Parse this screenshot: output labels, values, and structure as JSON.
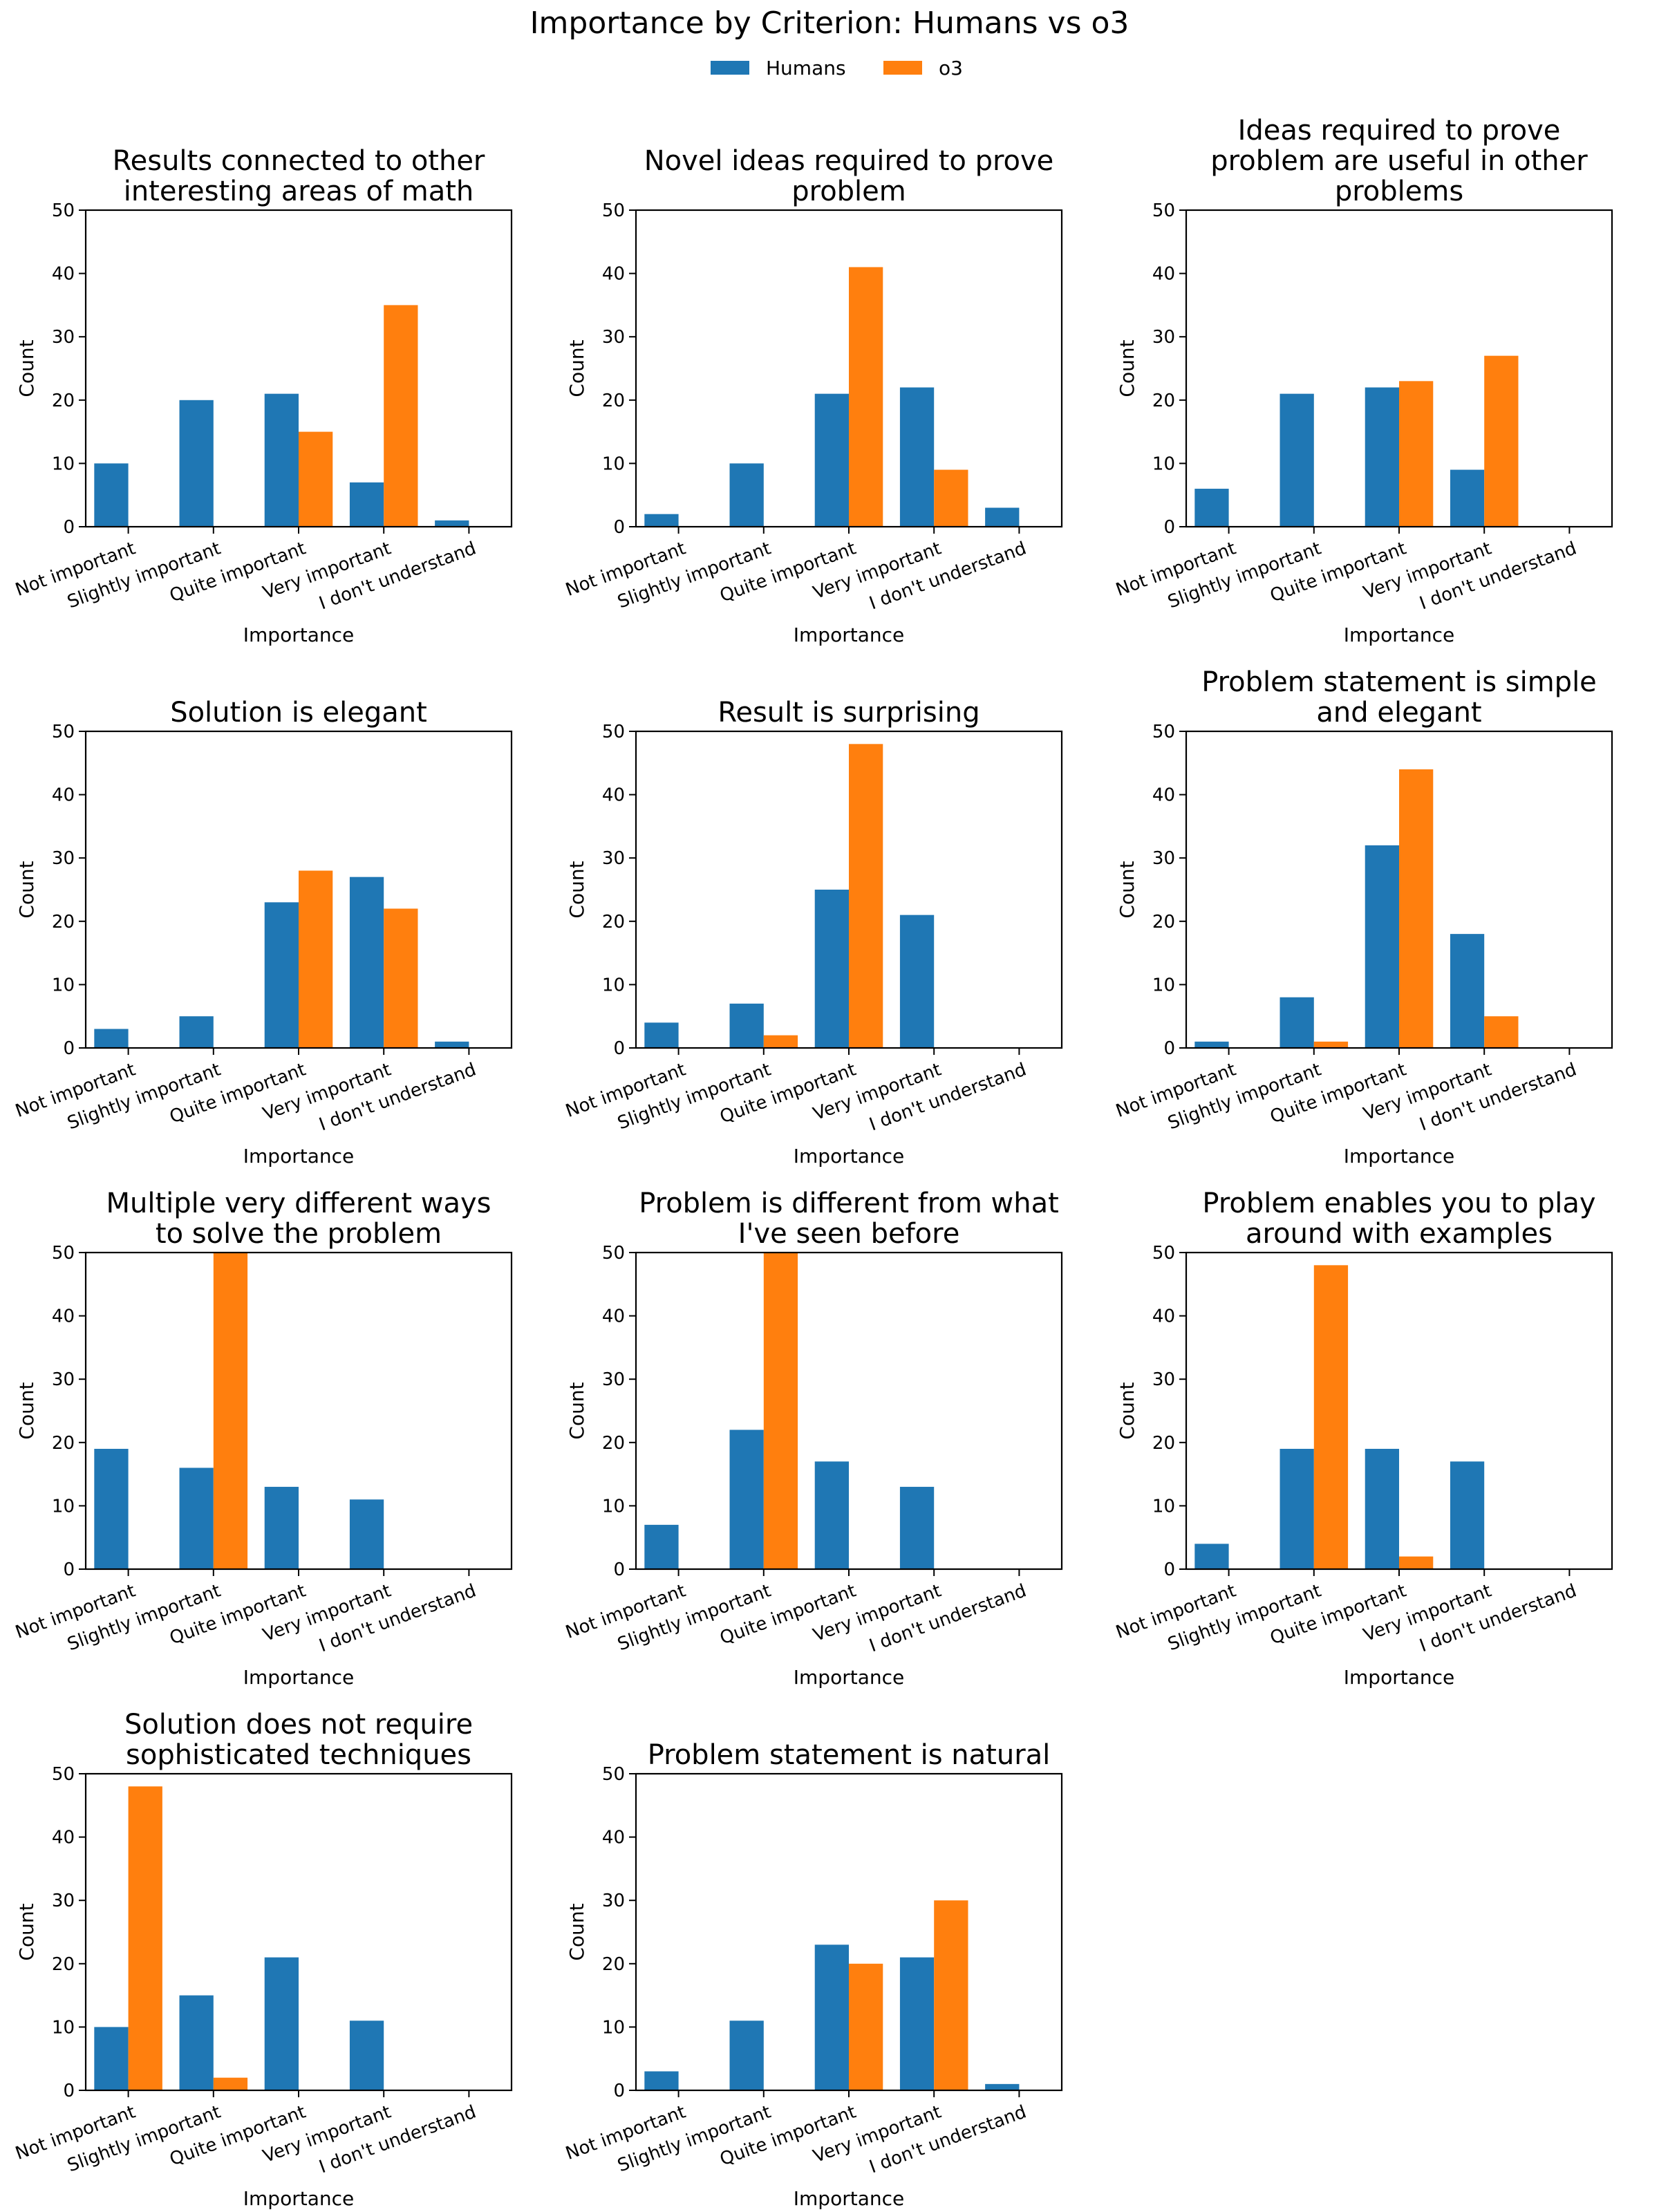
{
  "figure_title": "Importance by Criterion: Humans vs o3",
  "chart_data": {
    "type": "bar",
    "layout": {
      "rows": 4,
      "cols": 3
    },
    "legend": {
      "placement": "top-center",
      "entries": [
        {
          "name": "Humans",
          "color": "#1f77b4"
        },
        {
          "name": "o3",
          "color": "#ff7f0e"
        }
      ]
    },
    "categories": [
      "Not important",
      "Slightly important",
      "Quite important",
      "Very important",
      "I don't understand"
    ],
    "xlabel": "Importance",
    "ylabel": "Count",
    "ylim": [
      0,
      50
    ],
    "yticks": [
      0,
      10,
      20,
      30,
      40,
      50
    ],
    "grid": false,
    "charts": [
      {
        "title": [
          "Results connected to other",
          "interesting areas of math"
        ],
        "series": [
          {
            "name": "Humans",
            "values": [
              10,
              20,
              21,
              7,
              1
            ]
          },
          {
            "name": "o3",
            "values": [
              0,
              0,
              15,
              35,
              0
            ]
          }
        ]
      },
      {
        "title": [
          "Novel ideas required to prove",
          "problem"
        ],
        "series": [
          {
            "name": "Humans",
            "values": [
              2,
              10,
              21,
              22,
              3
            ]
          },
          {
            "name": "o3",
            "values": [
              0,
              0,
              41,
              9,
              0
            ]
          }
        ]
      },
      {
        "title": [
          "Ideas required to prove",
          "problem are useful in other",
          "problems"
        ],
        "series": [
          {
            "name": "Humans",
            "values": [
              6,
              21,
              22,
              9,
              0
            ]
          },
          {
            "name": "o3",
            "values": [
              0,
              0,
              23,
              27,
              0
            ]
          }
        ]
      },
      {
        "title": [
          "Solution is elegant"
        ],
        "series": [
          {
            "name": "Humans",
            "values": [
              3,
              5,
              23,
              27,
              1
            ]
          },
          {
            "name": "o3",
            "values": [
              0,
              0,
              28,
              22,
              0
            ]
          }
        ]
      },
      {
        "title": [
          "Result is surprising"
        ],
        "series": [
          {
            "name": "Humans",
            "values": [
              4,
              7,
              25,
              21,
              0
            ]
          },
          {
            "name": "o3",
            "values": [
              0,
              2,
              48,
              0,
              0
            ]
          }
        ]
      },
      {
        "title": [
          "Problem statement is simple",
          "and elegant"
        ],
        "series": [
          {
            "name": "Humans",
            "values": [
              1,
              8,
              32,
              18,
              0
            ]
          },
          {
            "name": "o3",
            "values": [
              0,
              1,
              44,
              5,
              0
            ]
          }
        ]
      },
      {
        "title": [
          "Multiple very different ways",
          "to solve the problem"
        ],
        "series": [
          {
            "name": "Humans",
            "values": [
              19,
              16,
              13,
              11,
              0
            ]
          },
          {
            "name": "o3",
            "values": [
              0,
              50,
              0,
              0,
              0
            ]
          }
        ]
      },
      {
        "title": [
          "Problem is different from what",
          "I've seen before"
        ],
        "series": [
          {
            "name": "Humans",
            "values": [
              7,
              22,
              17,
              13,
              0
            ]
          },
          {
            "name": "o3",
            "values": [
              0,
              50,
              0,
              0,
              0
            ]
          }
        ]
      },
      {
        "title": [
          "Problem enables you to play",
          "around with examples"
        ],
        "series": [
          {
            "name": "Humans",
            "values": [
              4,
              19,
              19,
              17,
              0
            ]
          },
          {
            "name": "o3",
            "values": [
              0,
              48,
              2,
              0,
              0
            ]
          }
        ]
      },
      {
        "title": [
          "Solution does not require",
          "sophisticated techniques"
        ],
        "series": [
          {
            "name": "Humans",
            "values": [
              10,
              15,
              21,
              11,
              0
            ]
          },
          {
            "name": "o3",
            "values": [
              48,
              2,
              0,
              0,
              0
            ]
          }
        ]
      },
      {
        "title": [
          "Problem statement is natural"
        ],
        "series": [
          {
            "name": "Humans",
            "values": [
              3,
              11,
              23,
              21,
              1
            ]
          },
          {
            "name": "o3",
            "values": [
              0,
              0,
              20,
              30,
              0
            ]
          }
        ]
      }
    ]
  }
}
